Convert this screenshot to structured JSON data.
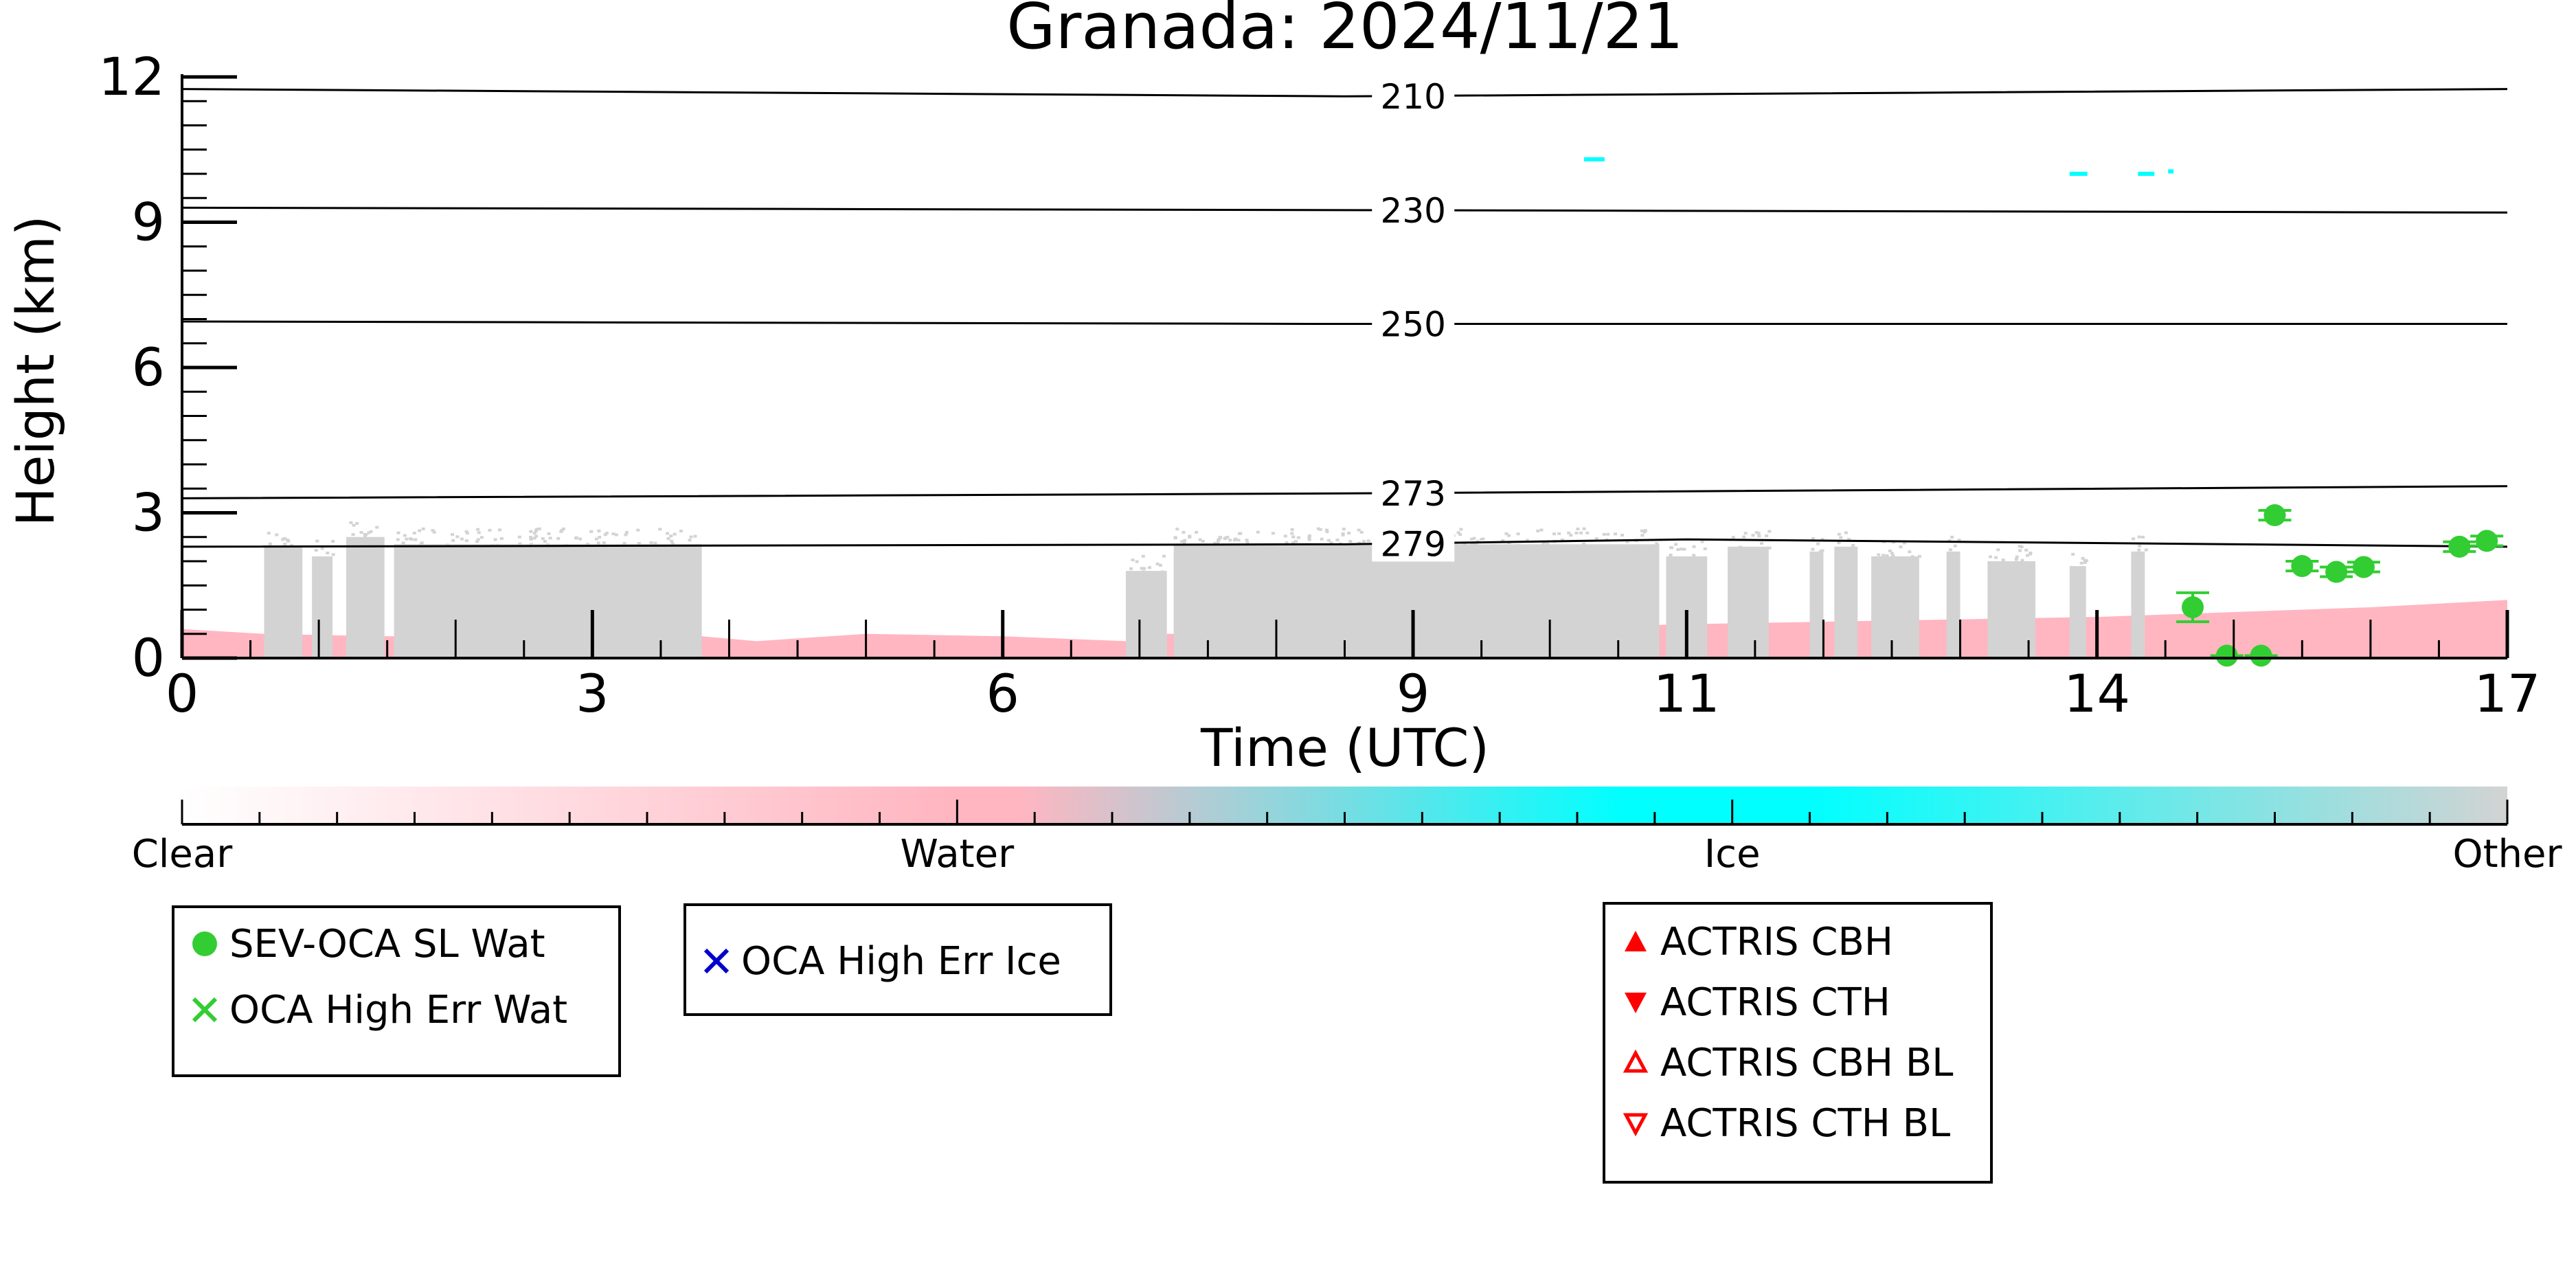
{
  "chart_data": {
    "type": "scatter",
    "title": "Granada: 2024/11/21",
    "xlabel": "Time (UTC)",
    "ylabel": "Height (km)",
    "xlim": [
      0,
      17
    ],
    "ylim": [
      0,
      12
    ],
    "x_ticks": [
      0,
      3,
      6,
      9,
      11,
      14,
      17
    ],
    "y_ticks": [
      0,
      3,
      6,
      9,
      12
    ],
    "colorbar": {
      "labels": [
        "Clear",
        "Water",
        "Ice",
        "Other"
      ],
      "colors": [
        "#ffffff",
        "#ffb6c1",
        "#00ffff",
        "#d3d3d3"
      ]
    },
    "temperature_contours": [
      {
        "label": "210",
        "points": [
          [
            0,
            11.75
          ],
          [
            8.5,
            11.6
          ],
          [
            17,
            11.75
          ]
        ]
      },
      {
        "label": "230",
        "points": [
          [
            0,
            9.3
          ],
          [
            8.5,
            9.25
          ],
          [
            17,
            9.2
          ]
        ]
      },
      {
        "label": "250",
        "points": [
          [
            0,
            6.95
          ],
          [
            8.5,
            6.9
          ],
          [
            17,
            6.9
          ]
        ]
      },
      {
        "label": "273",
        "points": [
          [
            0,
            3.3
          ],
          [
            8.5,
            3.4
          ],
          [
            17,
            3.55
          ]
        ]
      },
      {
        "label": "279",
        "points": [
          [
            0,
            2.3
          ],
          [
            8.5,
            2.35
          ],
          [
            11,
            2.45
          ],
          [
            17,
            2.3
          ]
        ]
      }
    ],
    "contour_label_x": 8.8,
    "series": [
      {
        "name": "SEV-OCA SL Wat",
        "color": "#32cd32",
        "marker": "circle",
        "points": [
          {
            "x": 14.7,
            "y": 1.05,
            "err": 0.3
          },
          {
            "x": 14.95,
            "y": 0.05,
            "err": 0.0
          },
          {
            "x": 15.2,
            "y": 0.05,
            "err": 0.0
          },
          {
            "x": 15.3,
            "y": 2.95,
            "err": 0.1
          },
          {
            "x": 15.5,
            "y": 1.9,
            "err": 0.1
          },
          {
            "x": 15.75,
            "y": 1.78,
            "err": 0.1
          },
          {
            "x": 15.95,
            "y": 1.88,
            "err": 0.1
          },
          {
            "x": 16.65,
            "y": 2.3,
            "err": 0.1
          },
          {
            "x": 16.85,
            "y": 2.42,
            "err": 0.1
          }
        ]
      },
      {
        "name": "OCA High Err Wat",
        "color": "#32cd32",
        "marker": "x",
        "points": []
      },
      {
        "name": "OCA High Err Ice",
        "color": "#0000cd",
        "marker": "x",
        "points": []
      },
      {
        "name": "ACTRIS CBH",
        "color": "#ff0000",
        "marker": "triangle-up",
        "points": []
      },
      {
        "name": "ACTRIS CTH",
        "color": "#ff0000",
        "marker": "triangle-down",
        "points": []
      },
      {
        "name": "ACTRIS CBH BL",
        "color": "#ff0000",
        "marker": "triangle-up-open",
        "points": []
      },
      {
        "name": "ACTRIS CTH BL",
        "color": "#ff0000",
        "marker": "triangle-down-open",
        "points": []
      }
    ],
    "cloud_mask_other": [
      {
        "x0": 0.6,
        "x1": 0.88,
        "top": 2.3
      },
      {
        "x0": 0.95,
        "x1": 1.1,
        "top": 2.1
      },
      {
        "x0": 1.2,
        "x1": 1.48,
        "top": 2.5
      },
      {
        "x0": 1.55,
        "x1": 3.8,
        "top": 2.35
      },
      {
        "x0": 6.9,
        "x1": 7.2,
        "top": 1.8
      },
      {
        "x0": 7.25,
        "x1": 10.8,
        "top": 2.35
      },
      {
        "x0": 10.85,
        "x1": 11.15,
        "top": 2.1
      },
      {
        "x0": 11.3,
        "x1": 11.6,
        "top": 2.3
      },
      {
        "x0": 11.9,
        "x1": 12.0,
        "top": 2.2
      },
      {
        "x0": 12.08,
        "x1": 12.25,
        "top": 2.3
      },
      {
        "x0": 12.35,
        "x1": 12.7,
        "top": 2.1
      },
      {
        "x0": 12.9,
        "x1": 13.0,
        "top": 2.2
      },
      {
        "x0": 13.2,
        "x1": 13.55,
        "top": 2.0
      },
      {
        "x0": 13.8,
        "x1": 13.92,
        "top": 1.9
      },
      {
        "x0": 14.25,
        "x1": 14.35,
        "top": 2.2
      }
    ],
    "cloud_mask_water": [
      [
        0,
        0.6
      ],
      [
        0.6,
        0.5
      ],
      [
        1.5,
        0.45
      ],
      [
        3.8,
        0.45
      ],
      [
        4.2,
        0.35
      ],
      [
        5.0,
        0.5
      ],
      [
        6.0,
        0.45
      ],
      [
        6.9,
        0.35
      ],
      [
        7.2,
        0.5
      ],
      [
        9.0,
        0.55
      ],
      [
        11.0,
        0.7
      ],
      [
        12.0,
        0.75
      ],
      [
        13.0,
        0.8
      ],
      [
        14.0,
        0.85
      ],
      [
        15.0,
        0.95
      ],
      [
        16.0,
        1.05
      ],
      [
        17,
        1.2
      ]
    ],
    "cloud_mask_ice": [
      {
        "x0": 10.25,
        "x1": 10.4,
        "y": 10.3
      },
      {
        "x0": 13.8,
        "x1": 13.93,
        "y": 10.0
      },
      {
        "x0": 14.3,
        "x1": 14.42,
        "y": 10.0
      },
      {
        "x0": 14.52,
        "x1": 14.56,
        "y": 10.05
      }
    ],
    "legends": [
      [
        "SEV-OCA SL Wat",
        "OCA High Err Wat"
      ],
      [
        "OCA High Err Ice"
      ],
      [
        "ACTRIS CBH",
        "ACTRIS CTH",
        "ACTRIS CBH BL",
        "ACTRIS CTH BL"
      ]
    ]
  }
}
